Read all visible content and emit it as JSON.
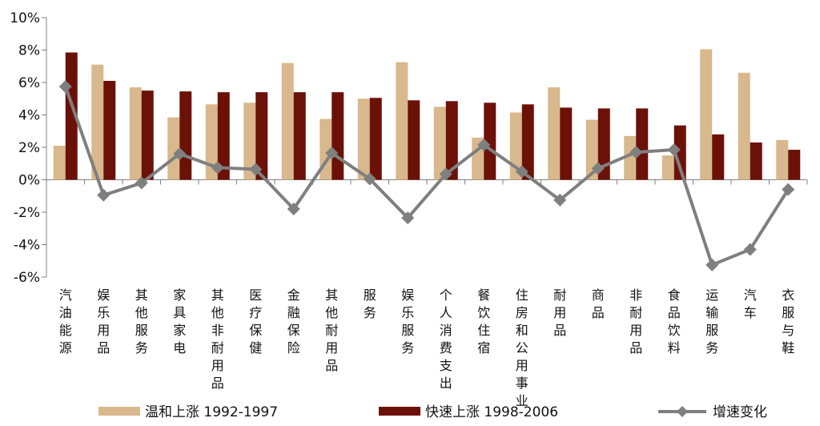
{
  "chart_data": {
    "type": "bar",
    "title": "",
    "xlabel": "",
    "ylabel": "",
    "ylim": [
      -6,
      10
    ],
    "yticks": [
      10,
      8,
      6,
      4,
      2,
      0,
      -2,
      -4,
      -6
    ],
    "ytick_format": "%",
    "grid": false,
    "legend_position": "bottom",
    "categories": [
      "汽油能源",
      "娱乐用品",
      "其他服务",
      "家具家电",
      "其他非耐用品",
      "医疗保健",
      "金融保险",
      "其他耐用品",
      "服务",
      "娱乐服务",
      "个人消费支出",
      "餐饮住宿",
      "住房和公用事业",
      "耐用品",
      "商品",
      "非耐用品",
      "食品饮料",
      "运输服务",
      "汽车",
      "衣服与鞋"
    ],
    "series": [
      {
        "name": "温和上涨 1992-1997",
        "kind": "bar",
        "color": "#d8b88c",
        "values": [
          2.1,
          7.1,
          5.7,
          3.85,
          4.65,
          4.75,
          7.2,
          3.75,
          5.0,
          7.25,
          4.5,
          2.6,
          4.15,
          5.7,
          3.7,
          2.7,
          1.5,
          8.05,
          6.6,
          2.45
        ]
      },
      {
        "name": "快速上涨 1998-2006",
        "kind": "bar",
        "color": "#6b1108",
        "values": [
          7.85,
          6.1,
          5.5,
          5.45,
          5.4,
          5.4,
          5.4,
          5.4,
          5.05,
          4.9,
          4.85,
          4.75,
          4.65,
          4.45,
          4.4,
          4.4,
          3.35,
          2.8,
          2.3,
          1.85
        ]
      },
      {
        "name": "增速变化",
        "kind": "line",
        "color": "#7f7f7f",
        "values": [
          5.75,
          -0.95,
          -0.2,
          1.6,
          0.75,
          0.65,
          -1.8,
          1.65,
          0.05,
          -2.35,
          0.35,
          2.15,
          0.5,
          -1.25,
          0.7,
          1.7,
          1.85,
          -5.25,
          -4.3,
          -0.6
        ]
      }
    ]
  }
}
